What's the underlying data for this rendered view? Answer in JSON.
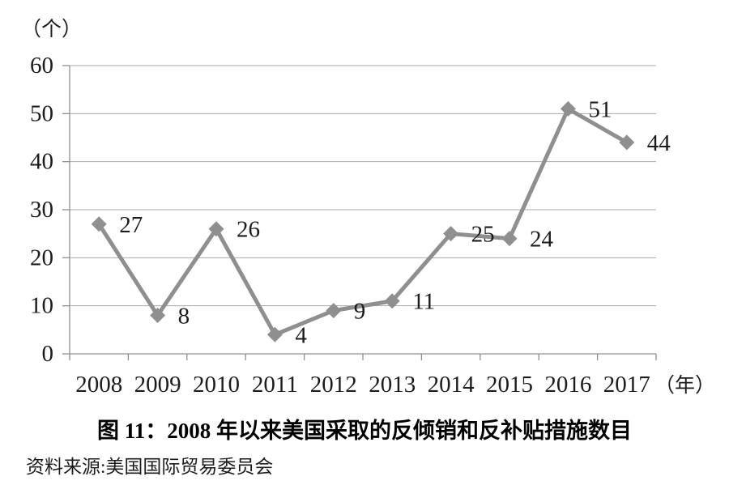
{
  "figure": {
    "title": "图 11：2008 年以来美国采取的反倾销和反补贴措施数目",
    "source_note": "资料来源:美国国际贸易委员会"
  },
  "chart_data": {
    "type": "line",
    "title": "图 11：2008 年以来美国采取的反倾销和反补贴措施数目",
    "categories": [
      "2008",
      "2009",
      "2010",
      "2011",
      "2012",
      "2013",
      "2014",
      "2015",
      "2016",
      "2017"
    ],
    "values": [
      27,
      8,
      26,
      4,
      9,
      11,
      25,
      24,
      51,
      44
    ],
    "xlabel": "（年）",
    "ylabel": "（个）",
    "ylim": [
      0,
      60
    ],
    "yticks": [
      0,
      10,
      20,
      30,
      40,
      50,
      60
    ],
    "grid": true,
    "legend_position": "none",
    "data_labels": true,
    "marker": "diamond",
    "source_note": "资料来源:美国国际贸易委员会",
    "colors": {
      "line": "#8f8f8f",
      "marker": "#8f8f8f",
      "gridline": "#a8a8a8",
      "axis": "#8f8f8f",
      "text": "#1c1c1c"
    }
  }
}
